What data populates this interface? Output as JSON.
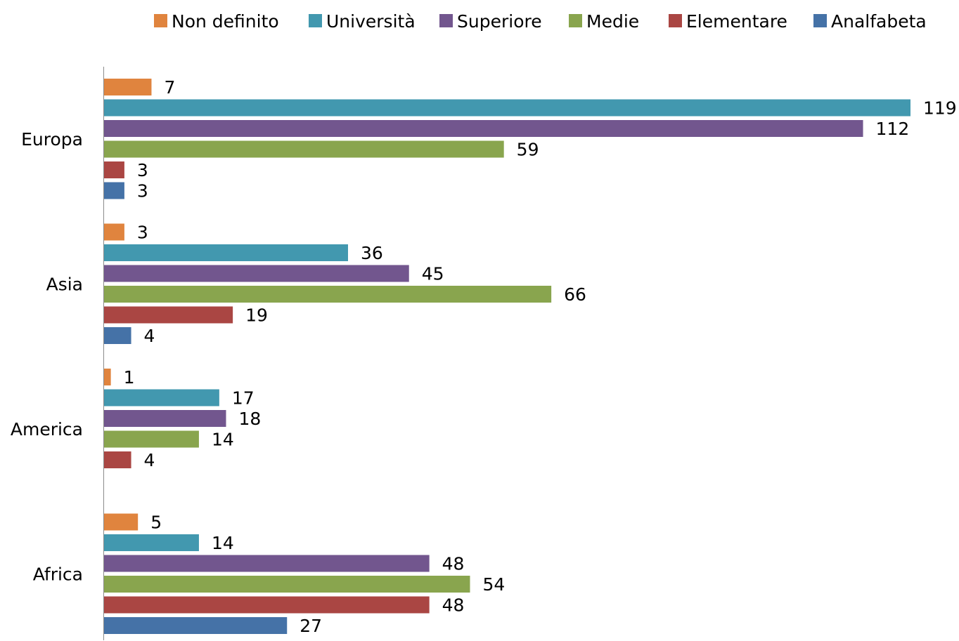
{
  "chart_data": {
    "type": "bar",
    "orientation": "horizontal",
    "categories": [
      "Europa",
      "Asia",
      "America",
      "Africa"
    ],
    "series": [
      {
        "name": "Non definito",
        "color": "#E0843E",
        "values": [
          7,
          3,
          1,
          5
        ]
      },
      {
        "name": "Università",
        "color": "#4298AF",
        "values": [
          119,
          36,
          17,
          14
        ]
      },
      {
        "name": "Superiore",
        "color": "#72568E",
        "values": [
          112,
          45,
          18,
          48
        ]
      },
      {
        "name": "Medie",
        "color": "#89A54E",
        "values": [
          59,
          66,
          14,
          54
        ]
      },
      {
        "name": "Elementare",
        "color": "#AA4643",
        "values": [
          3,
          19,
          4,
          48
        ]
      },
      {
        "name": "Analfabeta",
        "color": "#4572A7",
        "values": [
          3,
          4,
          null,
          27
        ]
      }
    ],
    "xlim": [
      0,
      119
    ],
    "grid": false,
    "legend": "top",
    "title": "",
    "xlabel": "",
    "ylabel": ""
  }
}
